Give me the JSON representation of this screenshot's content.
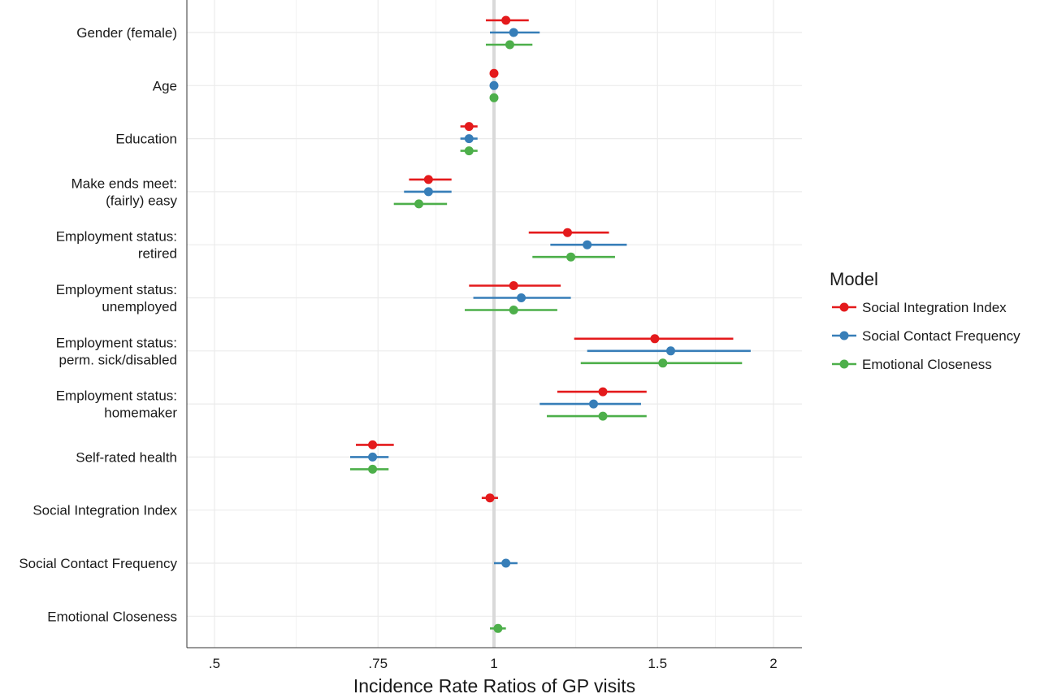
{
  "chart_data": {
    "type": "forest",
    "xlabel": "Incidence Rate Ratios of GP visits",
    "x_scale": "log",
    "xlim": [
      0.45,
      2.1
    ],
    "xticks": [
      0.5,
      0.75,
      1,
      1.5,
      2
    ],
    "xtick_labels": [
      ".5",
      ".75",
      "1",
      "1.5",
      "2"
    ],
    "reference_line": 1,
    "grid": true,
    "legend": {
      "title": "Model",
      "position": "right"
    },
    "categories": [
      [
        "Gender (female)"
      ],
      [
        "Age"
      ],
      [
        "Education"
      ],
      [
        "Make ends meet:",
        "(fairly) easy"
      ],
      [
        "Employment status:",
        "retired"
      ],
      [
        "Employment status:",
        "unemployed"
      ],
      [
        "Employment status:",
        "perm. sick/disabled"
      ],
      [
        "Employment status:",
        "homemaker"
      ],
      [
        "Self-rated health"
      ],
      [
        "Social Integration Index"
      ],
      [
        "Social Contact Frequency"
      ],
      [
        "Emotional Closeness"
      ]
    ],
    "series": [
      {
        "name": "Social Integration Index",
        "color": "#e41a1c",
        "estimates": [
          1.03,
          1.0,
          0.94,
          0.85,
          1.2,
          1.05,
          1.49,
          1.31,
          0.74,
          0.99,
          null,
          null
        ],
        "lower": [
          0.98,
          null,
          0.92,
          0.81,
          1.09,
          0.94,
          1.22,
          1.17,
          0.71,
          0.97,
          null,
          null
        ],
        "upper": [
          1.09,
          null,
          0.96,
          0.9,
          1.33,
          1.18,
          1.81,
          1.46,
          0.78,
          1.01,
          null,
          null
        ]
      },
      {
        "name": "Social Contact Frequency",
        "color": "#377eb8",
        "estimates": [
          1.05,
          1.0,
          0.94,
          0.85,
          1.26,
          1.07,
          1.55,
          1.28,
          0.74,
          null,
          1.03,
          null
        ],
        "lower": [
          0.99,
          null,
          0.92,
          0.8,
          1.15,
          0.95,
          1.26,
          1.12,
          0.7,
          null,
          1.0,
          null
        ],
        "upper": [
          1.12,
          null,
          0.96,
          0.9,
          1.39,
          1.21,
          1.89,
          1.44,
          0.77,
          null,
          1.06,
          null
        ]
      },
      {
        "name": "Emotional Closeness",
        "color": "#4daf4a",
        "estimates": [
          1.04,
          1.0,
          0.94,
          0.83,
          1.21,
          1.05,
          1.52,
          1.31,
          0.74,
          null,
          null,
          1.01
        ],
        "lower": [
          0.98,
          null,
          0.92,
          0.78,
          1.1,
          0.93,
          1.24,
          1.14,
          0.7,
          null,
          null,
          0.99
        ],
        "upper": [
          1.1,
          null,
          0.96,
          0.89,
          1.35,
          1.17,
          1.85,
          1.46,
          0.77,
          null,
          null,
          1.03
        ]
      }
    ]
  }
}
